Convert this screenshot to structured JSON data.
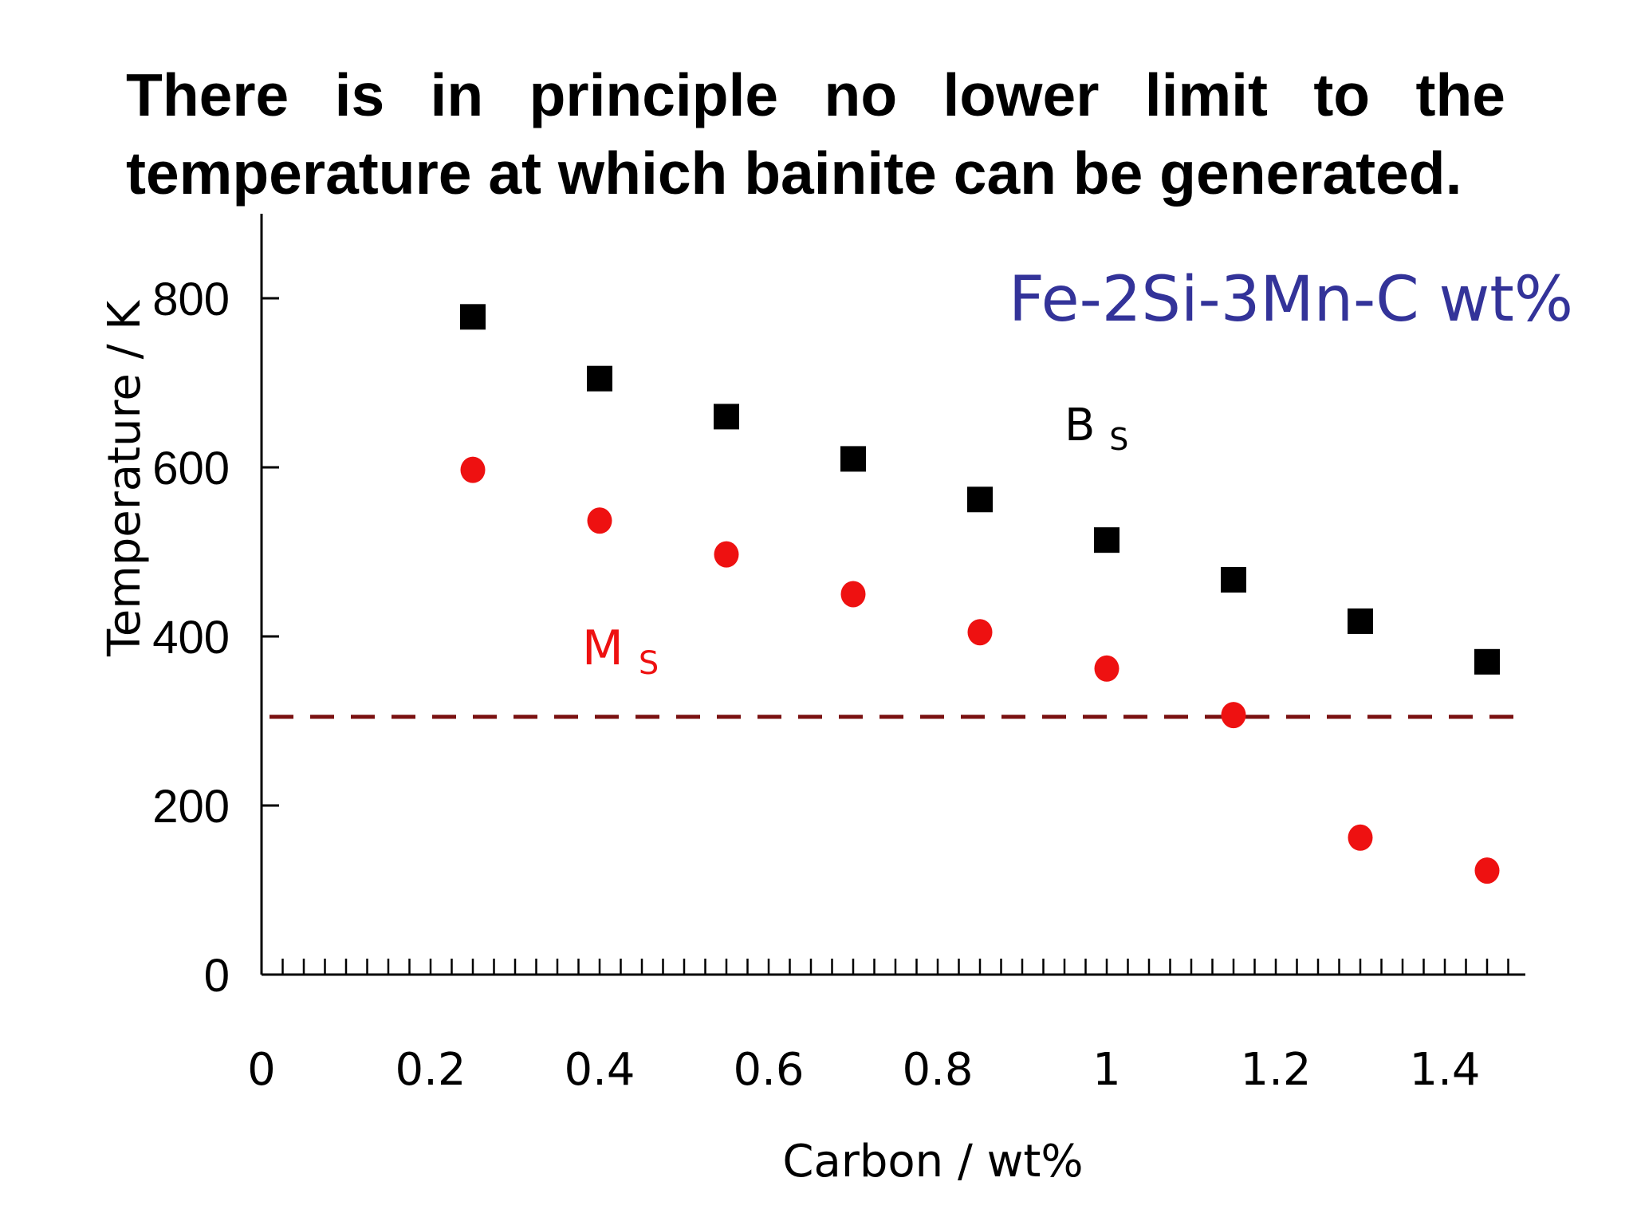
{
  "slide": {
    "title": "There is in principle no lower limit to the temperature at which bainite can be generated."
  },
  "chart_data": {
    "type": "scatter",
    "title": "",
    "xlabel": "Carbon / wt%",
    "ylabel": "Temperature / K",
    "xlim": [
      0,
      1.5
    ],
    "ylim": [
      0,
      900
    ],
    "x_ticks": [
      "0",
      "0.2",
      "0.4",
      "0.6",
      "0.8",
      "1",
      "1.2",
      "1.4"
    ],
    "y_ticks": [
      "0",
      "200",
      "400",
      "600",
      "800"
    ],
    "grid": false,
    "series": [
      {
        "name": "Bs",
        "marker": "square",
        "color": "#000000",
        "x": [
          0.25,
          0.4,
          0.55,
          0.7,
          0.85,
          1.0,
          1.15,
          1.3,
          1.45
        ],
        "y": [
          778,
          705,
          660,
          610,
          562,
          514,
          467,
          418,
          370
        ]
      },
      {
        "name": "Ms",
        "marker": "circle",
        "color": "#ee1111",
        "x": [
          0.25,
          0.4,
          0.55,
          0.7,
          0.85,
          1.0,
          1.15,
          1.3,
          1.45
        ],
        "y": [
          597,
          537,
          497,
          450,
          405,
          362,
          307,
          162,
          123
        ]
      }
    ],
    "reference_line": {
      "y": 305,
      "style": "dashed",
      "color": "#7a1010"
    },
    "annotations": {
      "alloy": {
        "text": "Fe-2Si-3Mn-C wt%",
        "color": "#333399"
      },
      "bs": {
        "main": "B",
        "sub": "S",
        "color": "#000000"
      },
      "ms": {
        "main": "M",
        "sub": "S",
        "color": "#ee1111"
      }
    }
  }
}
